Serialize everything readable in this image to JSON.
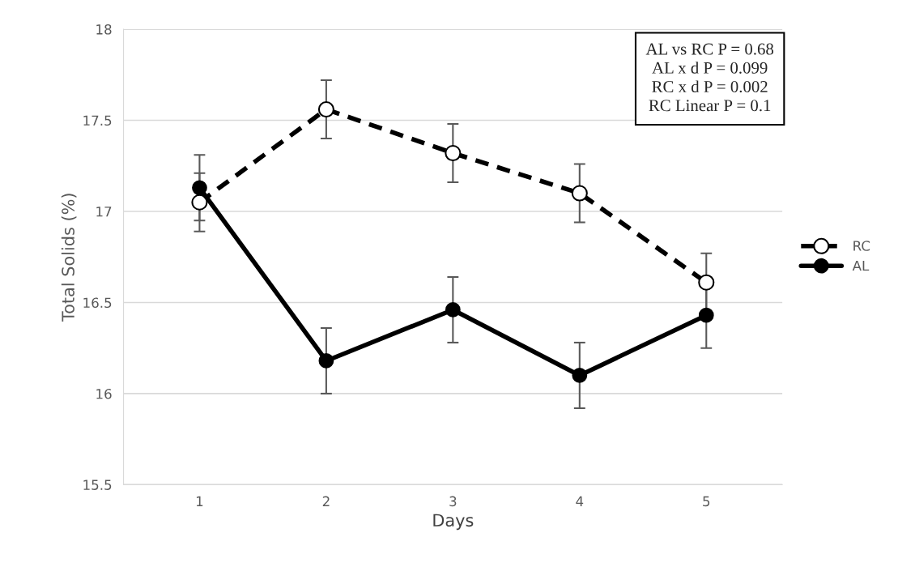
{
  "chart_data": {
    "type": "line",
    "xlabel": "Days",
    "ylabel": "Total Solids (%)",
    "categories": [
      "1",
      "2",
      "3",
      "4",
      "5"
    ],
    "series": [
      {
        "name": "RC",
        "color": "#000000",
        "line_style": "dashed",
        "values": [
          17.05,
          17.56,
          17.32,
          17.1,
          16.61
        ],
        "errors": [
          0.16,
          0.16,
          0.16,
          0.16,
          0.16
        ]
      },
      {
        "name": "AL",
        "color": "#000000",
        "line_style": "solid",
        "values": [
          17.13,
          16.18,
          16.46,
          16.1,
          16.43
        ],
        "errors": [
          0.18,
          0.18,
          0.18,
          0.18,
          0.18
        ]
      }
    ],
    "ylim": [
      15.5,
      18
    ],
    "yticks": [
      15.5,
      16,
      16.5,
      17,
      17.5,
      18
    ],
    "grid": "y",
    "legend": "right",
    "marker": "circle",
    "annotations": [
      "AL vs RC P = 0.68",
      "AL x d P = 0.099",
      "RC x d P = 0.002",
      "RC Linear P = 0.1"
    ]
  }
}
